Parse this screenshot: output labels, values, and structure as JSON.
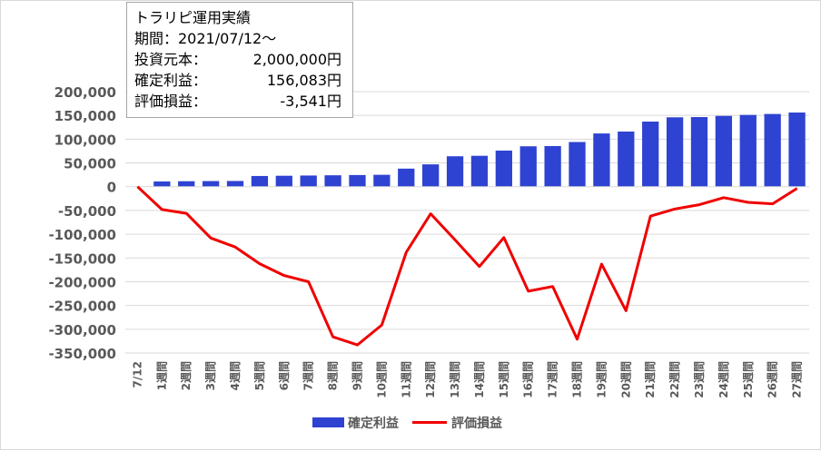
{
  "info": {
    "title": "トラリピ運用実績",
    "period": "期間：2021/07/12～",
    "rows": [
      {
        "label": "投資元本：",
        "value": "2,000,000円"
      },
      {
        "label": "確定利益：",
        "value": "156,083円"
      },
      {
        "label": "評価損益：",
        "value": "-3,541円"
      }
    ]
  },
  "colors": {
    "bar": "#2e43d1",
    "line": "#f00000",
    "grid": "#d9d9d9",
    "text": "#595959"
  },
  "chart_data": {
    "type": "bar+line",
    "categories": [
      "7/12",
      "1週間",
      "2週間",
      "3週間",
      "4週間",
      "5週間",
      "6週間",
      "7週間",
      "8週間",
      "9週間",
      "10週間",
      "11週間",
      "12週間",
      "13週間",
      "14週間",
      "15週間",
      "16週間",
      "17週間",
      "18週間",
      "19週間",
      "20週間",
      "21週間",
      "22週間",
      "23週間",
      "24週間",
      "25週間",
      "26週間",
      "27週間"
    ],
    "series": [
      {
        "name": "確定利益",
        "type": "bar",
        "values": [
          0,
          11000,
          11500,
          11800,
          12000,
          22500,
          23000,
          23500,
          24000,
          24500,
          25000,
          38000,
          47000,
          64000,
          65000,
          76000,
          85000,
          85500,
          94000,
          112000,
          116000,
          137000,
          146000,
          146500,
          149000,
          151000,
          153000,
          156083
        ]
      },
      {
        "name": "評価損益",
        "type": "line",
        "values": [
          0,
          -48000,
          -56000,
          -108000,
          -127000,
          -162000,
          -187000,
          -200000,
          -316000,
          -333000,
          -291000,
          -138000,
          -57000,
          -112000,
          -168000,
          -107000,
          -220000,
          -210000,
          -321000,
          -163000,
          -261000,
          -62000,
          -47000,
          -38000,
          -23000,
          -33000,
          -36000,
          -3541
        ]
      }
    ],
    "yticks": [
      200000,
      150000,
      100000,
      50000,
      0,
      -50000,
      -100000,
      -150000,
      -200000,
      -250000,
      -300000,
      -350000
    ],
    "ytick_labels": [
      "200,000",
      "150,000",
      "100,000",
      "50,000",
      "0",
      "-50,000",
      "-100,000",
      "-150,000",
      "-200,000",
      "-250,000",
      "-300,000",
      "-350,000"
    ],
    "ylim": [
      -350000,
      200000
    ],
    "grid": true,
    "legend": "bottom"
  }
}
